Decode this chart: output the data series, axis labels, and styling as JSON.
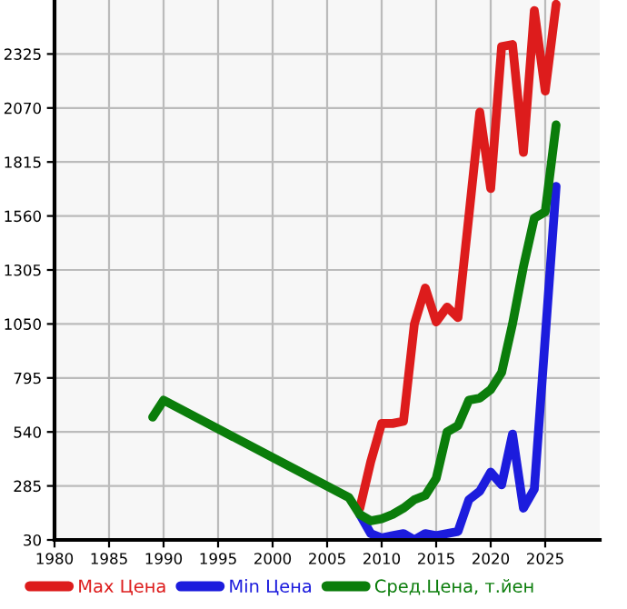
{
  "chart_data": {
    "type": "line",
    "series": [
      {
        "name": "Max Цена",
        "color": "#dd1c1c",
        "x": [
          2008,
          2009,
          2010,
          2011,
          2012,
          2013,
          2014,
          2015,
          2016,
          2017,
          2018,
          2019,
          2020,
          2021,
          2022,
          2023,
          2024,
          2025,
          2026
        ],
        "values": [
          180,
          400,
          580,
          580,
          590,
          1050,
          1220,
          1060,
          1130,
          1080,
          1560,
          2050,
          1690,
          2360,
          2370,
          1860,
          2530,
          2150,
          2560
        ]
      },
      {
        "name": "Min Цена",
        "color": "#1c1cdd",
        "x": [
          2008,
          2009,
          2010,
          2011,
          2012,
          2013,
          2014,
          2015,
          2016,
          2017,
          2018,
          2019,
          2020,
          2021,
          2022,
          2023,
          2024,
          2026
        ],
        "values": [
          150,
          60,
          40,
          50,
          60,
          30,
          60,
          50,
          60,
          70,
          220,
          260,
          350,
          290,
          530,
          180,
          270,
          1700
        ]
      },
      {
        "name": "Сред.Цена, т.йен",
        "color": "#0b7d0b",
        "x": [
          1989,
          1990,
          2007,
          2008,
          2009,
          2010,
          2011,
          2012,
          2013,
          2014,
          2015,
          2016,
          2017,
          2018,
          2019,
          2020,
          2021,
          2022,
          2023,
          2024,
          2025,
          2026
        ],
        "values": [
          610,
          690,
          230,
          150,
          120,
          130,
          150,
          180,
          220,
          240,
          320,
          540,
          570,
          690,
          700,
          740,
          820,
          1050,
          1320,
          1550,
          1580,
          1990
        ]
      }
    ],
    "xlim": [
      1980,
      2030
    ],
    "xticks": [
      1980,
      1985,
      1990,
      1995,
      2000,
      2005,
      2010,
      2015,
      2020,
      2025
    ],
    "ylim": [
      30,
      2580
    ],
    "yticks": [
      30,
      285,
      540,
      795,
      1050,
      1305,
      1560,
      1815,
      2070,
      2325
    ],
    "grid": true,
    "legend": "bottom",
    "marker": "none",
    "line_style": "solid"
  }
}
